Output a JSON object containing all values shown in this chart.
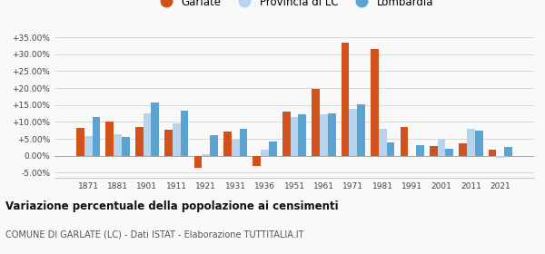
{
  "years": [
    1871,
    1881,
    1901,
    1911,
    1921,
    1931,
    1936,
    1951,
    1961,
    1971,
    1981,
    1991,
    2001,
    2011,
    2021
  ],
  "garlate": [
    8.2,
    10.0,
    8.5,
    7.8,
    -3.5,
    7.2,
    -3.0,
    13.0,
    19.8,
    33.3,
    31.5,
    8.5,
    2.8,
    3.7,
    1.7
  ],
  "provincia_lc": [
    5.8,
    6.3,
    12.6,
    9.7,
    0.4,
    4.7,
    1.8,
    11.5,
    12.3,
    13.8,
    7.9,
    0.0,
    5.0,
    7.9,
    -0.7
  ],
  "lombardia": [
    11.5,
    5.5,
    15.8,
    13.2,
    6.0,
    8.0,
    4.2,
    12.3,
    12.5,
    15.3,
    4.0,
    3.2,
    2.0,
    7.4,
    2.5
  ],
  "colors": {
    "garlate": "#d2521c",
    "provincia_lc": "#b8d4ed",
    "lombardia": "#5ba3d0"
  },
  "ylim": [
    -6.5,
    37
  ],
  "yticks": [
    -5,
    0,
    5,
    10,
    15,
    20,
    25,
    30,
    35
  ],
  "ytick_labels": [
    "-5.00%",
    "0.00%",
    "+5.00%",
    "+10.00%",
    "+15.00%",
    "+20.00%",
    "+25.00%",
    "+30.00%",
    "+35.00%"
  ],
  "title": "Variazione percentuale della popolazione ai censimenti",
  "subtitle": "COMUNE DI GARLATE (LC) - Dati ISTAT - Elaborazione TUTTITALIA.IT",
  "legend_labels": [
    "Garlate",
    "Provincia di LC",
    "Lombardia"
  ],
  "bar_width": 0.27,
  "background_color": "#f9f9f9"
}
